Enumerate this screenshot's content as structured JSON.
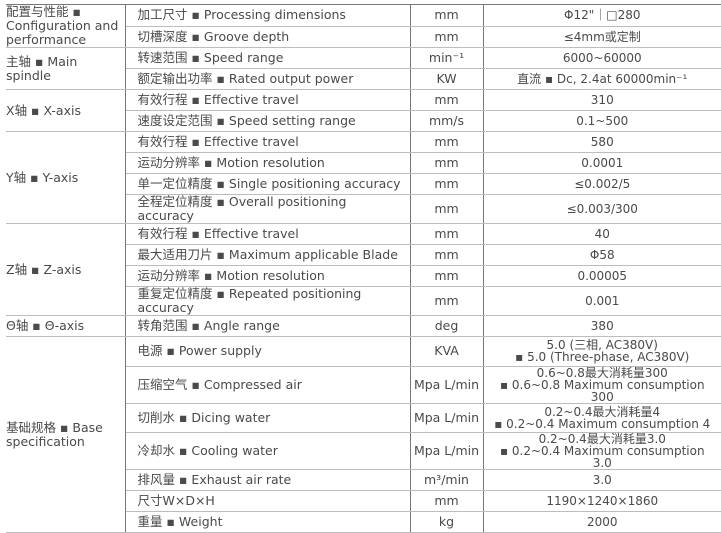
{
  "groups": [
    {
      "category": "配置与性能 ▪ Configuration and performance",
      "rows": [
        {
          "item": "加工尺寸 ▪ Processing dimensions",
          "unit": "mm",
          "value": "Φ12\"｜□280"
        },
        {
          "item": "切槽深度 ▪ Groove depth",
          "unit": "mm",
          "value": "≤4mm或定制"
        }
      ]
    },
    {
      "category": "主轴 ▪ Main spindle",
      "rows": [
        {
          "item": "转速范围 ▪ Speed range",
          "unit": "min⁻¹",
          "value": "6000~60000"
        },
        {
          "item": "额定输出功率 ▪ Rated output power",
          "unit": "KW",
          "value": "直流 ▪ Dc, 2.4at 60000min⁻¹"
        }
      ]
    },
    {
      "category": "X轴 ▪ X-axis",
      "rows": [
        {
          "item": "有效行程 ▪ Effective travel",
          "unit": "mm",
          "value": "310"
        },
        {
          "item": "速度设定范围 ▪ Speed setting range",
          "unit": "mm/s",
          "value": "0.1~500"
        }
      ]
    },
    {
      "category": "Y轴 ▪ Y-axis",
      "rows": [
        {
          "item": "有效行程 ▪ Effective travel",
          "unit": "mm",
          "value": "580"
        },
        {
          "item": "运动分辨率 ▪ Motion resolution",
          "unit": "mm",
          "value": "0.0001"
        },
        {
          "item": "单一定位精度 ▪ Single positioning accuracy",
          "unit": "mm",
          "value": "≤0.002/5"
        },
        {
          "item": "全程定位精度 ▪ Overall positioning accuracy",
          "unit": "mm",
          "value": "≤0.003/300"
        }
      ]
    },
    {
      "category": "Z轴 ▪ Z-axis",
      "rows": [
        {
          "item": "有效行程 ▪ Effective travel",
          "unit": "mm",
          "value": "40"
        },
        {
          "item": "最大适用刀片 ▪ Maximum applicable Blade",
          "unit": "mm",
          "value": "Φ58"
        },
        {
          "item": "运动分辨率 ▪ Motion resolution",
          "unit": "mm",
          "value": "0.00005"
        },
        {
          "item": "重复定位精度 ▪ Repeated positioning accuracy",
          "unit": "mm",
          "value": "0.001"
        }
      ]
    },
    {
      "category": "Θ轴 ▪ Θ-axis",
      "rows": [
        {
          "item": "转角范围 ▪ Angle range",
          "unit": "deg",
          "value": "380"
        }
      ]
    },
    {
      "category": "基础规格 ▪ Base specification",
      "rows": [
        {
          "item": "电源 ▪ Power supply",
          "unit": "KVA",
          "value": "5.0 (三相, AC380V)",
          "value2": "▪ 5.0 (Three-phase, AC380V)"
        },
        {
          "item": "压缩空气 ▪ Compressed air",
          "unit": "Mpa L/min",
          "value": "0.6~0.8最大消耗量300",
          "value2": "▪ 0.6~0.8 Maximum consumption 300"
        },
        {
          "item": "切削水 ▪ Dicing water",
          "unit": "Mpa L/min",
          "value": "0.2~0.4最大消耗量4",
          "value2": "▪ 0.2~0.4 Maximum consumption 4"
        },
        {
          "item": "冷却水 ▪ Cooling water",
          "unit": "Mpa L/min",
          "value": "0.2~0.4最大消耗量3.0",
          "value2": "▪ 0.2~0.4 Maximum consumption 3.0"
        },
        {
          "item": "排风量 ▪ Exhaust air rate",
          "unit": "m³/min",
          "value": "3.0"
        },
        {
          "item": "尺寸W×D×H",
          "unit": "mm",
          "value": "1190×1240×1860"
        },
        {
          "item": "重量 ▪ Weight",
          "unit": "kg",
          "value": "2000"
        }
      ]
    }
  ]
}
